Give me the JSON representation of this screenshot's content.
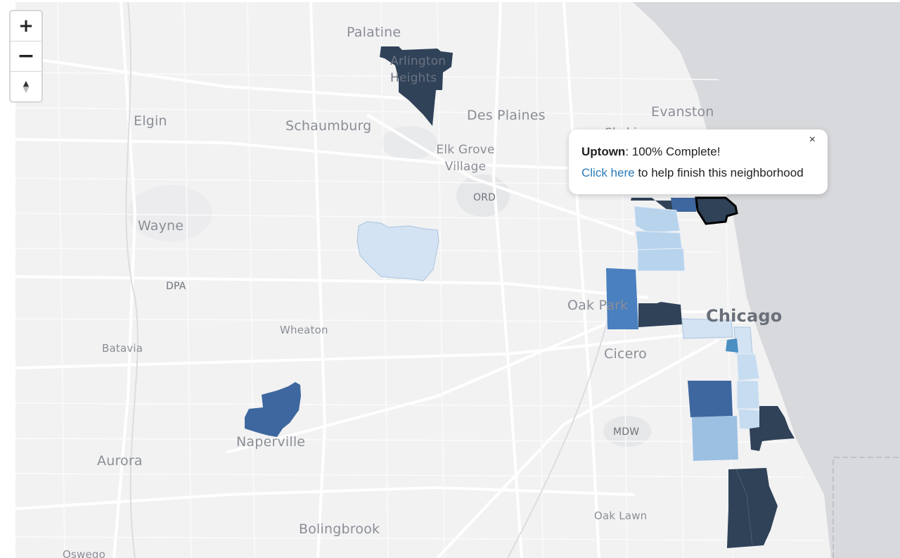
{
  "map": {
    "places": {
      "palatine": "Palatine",
      "arlington_heights": "Arlington Heights",
      "des_plaines": "Des Plaines",
      "evanston": "Evanston",
      "skokie": "Skokie",
      "elgin": "Elgin",
      "schaumburg": "Schaumburg",
      "elk_grove_village": "Elk Grove Village",
      "ord": "ORD",
      "wayne": "Wayne",
      "dpa": "DPA",
      "oak_park": "Oak Park",
      "chicago": "Chicago",
      "cicero": "Cicero",
      "wheaton": "Wheaton",
      "batavia": "Batavia",
      "naperville": "Naperville",
      "mdw": "MDW",
      "aurora": "Aurora",
      "oak_lawn": "Oak Lawn",
      "bolingbrook": "Bolingbrook",
      "oswego": "Oswego"
    },
    "colors": {
      "land": "#f2f2f3",
      "water": "#d8d9dc",
      "road": "#ffffff",
      "complete_100": "#2f4258",
      "complete_high": "#3e679f",
      "complete_mid": "#4a80bf",
      "complete_low": "#9bc0e2",
      "complete_vlow": "#d3e3f3",
      "selected_outline": "#000000"
    }
  },
  "zoom": {
    "in": "+",
    "out": "−",
    "north": "▲",
    "south": "▼"
  },
  "popup": {
    "close": "×",
    "neighborhood": "Uptown",
    "status": ": 100% Complete!",
    "link": "Click here",
    "rest": " to help finish this neighborhood"
  }
}
